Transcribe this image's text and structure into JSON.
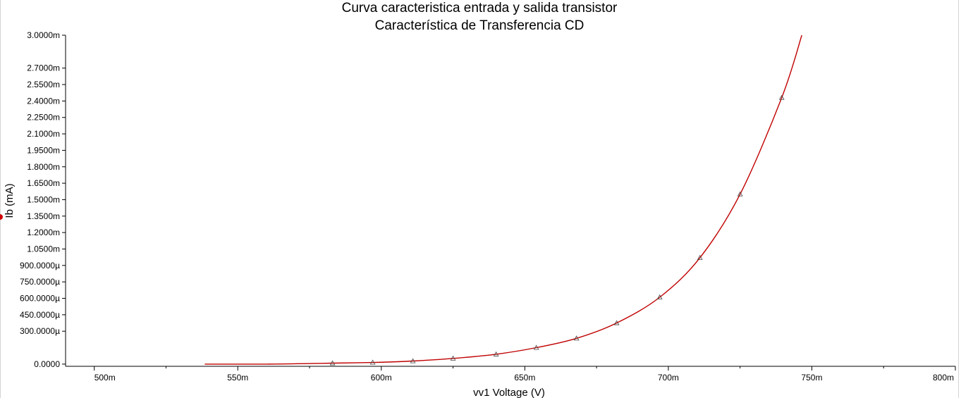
{
  "chart_data": {
    "type": "line",
    "title": "Curva caracteristica entrada y salida transistor",
    "subtitle": "Característica de Transferencia CD",
    "xlabel": "vv1 Voltage (V)",
    "ylabel": "Ib (mA)",
    "xlim": [
      0.49,
      0.8
    ],
    "ylim": [
      -2e-05,
      0.003
    ],
    "x_ticks": [
      {
        "value": 0.5,
        "label": "500m"
      },
      {
        "value": 0.55,
        "label": "550m"
      },
      {
        "value": 0.6,
        "label": "600m"
      },
      {
        "value": 0.65,
        "label": "650m"
      },
      {
        "value": 0.7,
        "label": "700m"
      },
      {
        "value": 0.75,
        "label": "750m"
      },
      {
        "value": 0.8,
        "label": "800m"
      }
    ],
    "y_ticks": [
      {
        "value": 0.0,
        "label": "0.0000"
      },
      {
        "value": 0.0003,
        "label": "300.0000µ"
      },
      {
        "value": 0.00045,
        "label": "450.0000µ"
      },
      {
        "value": 0.0006,
        "label": "600.0000µ"
      },
      {
        "value": 0.00075,
        "label": "750.0000µ"
      },
      {
        "value": 0.0009,
        "label": "900.0000µ"
      },
      {
        "value": 0.00105,
        "label": "1.0500m"
      },
      {
        "value": 0.0012,
        "label": "1.2000m"
      },
      {
        "value": 0.00135,
        "label": "1.3500m"
      },
      {
        "value": 0.0015,
        "label": "1.5000m"
      },
      {
        "value": 0.00165,
        "label": "1.6500m"
      },
      {
        "value": 0.0018,
        "label": "1.8000m"
      },
      {
        "value": 0.00195,
        "label": "1.9500m"
      },
      {
        "value": 0.0021,
        "label": "2.1000m"
      },
      {
        "value": 0.00225,
        "label": "2.2500m"
      },
      {
        "value": 0.0024,
        "label": "2.4000m"
      },
      {
        "value": 0.00255,
        "label": "2.5500m"
      },
      {
        "value": 0.0027,
        "label": "2.7000m"
      },
      {
        "value": 0.003,
        "label": "3.0000m"
      }
    ],
    "grid": false,
    "series": [
      {
        "color": "#c00000",
        "x": [
          0.5385,
          0.56,
          0.575,
          0.583,
          0.597,
          0.611,
          0.625,
          0.64,
          0.654,
          0.668,
          0.682,
          0.697,
          0.711,
          0.725,
          0.7395,
          0.7465
        ],
        "y": [
          0.0,
          0.0,
          5e-06,
          9e-06,
          1.5e-05,
          2.8e-05,
          5.2e-05,
          9e-05,
          0.00015,
          0.000235,
          0.000375,
          0.00061,
          0.00097,
          0.00155,
          0.00243,
          0.003
        ],
        "markers_x": [
          0.583,
          0.597,
          0.611,
          0.625,
          0.64,
          0.654,
          0.668,
          0.682,
          0.697,
          0.711,
          0.725,
          0.7395
        ],
        "markers_y": [
          9e-06,
          1.5e-05,
          2.8e-05,
          5.2e-05,
          9e-05,
          0.00015,
          0.000235,
          0.000375,
          0.00061,
          0.00097,
          0.00155,
          0.00243
        ],
        "marker": "triangle"
      }
    ]
  }
}
